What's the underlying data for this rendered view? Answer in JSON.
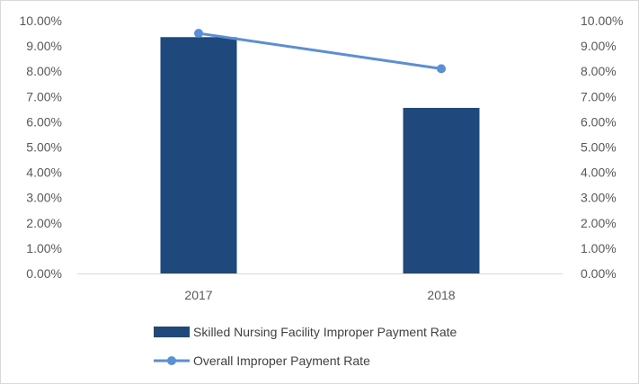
{
  "chart_data": {
    "type": "bar",
    "categories": [
      "2017",
      "2018"
    ],
    "series": [
      {
        "name": "Skilled Nursing Facility Improper Payment Rate",
        "kind": "bar",
        "axis": "left",
        "color": "#1f497d",
        "values": [
          9.35,
          6.55
        ]
      },
      {
        "name": "Overall Improper Payment Rate",
        "kind": "line",
        "axis": "right",
        "color": "#5b8fd4",
        "values": [
          9.5,
          8.1
        ]
      }
    ],
    "y_left": {
      "ylim": [
        0,
        10
      ],
      "ticks": [
        "0.00%",
        "1.00%",
        "2.00%",
        "3.00%",
        "4.00%",
        "5.00%",
        "6.00%",
        "7.00%",
        "8.00%",
        "9.00%",
        "10.00%"
      ]
    },
    "y_right": {
      "ylim": [
        0,
        10
      ],
      "ticks": [
        "0.00%",
        "1.00%",
        "2.00%",
        "3.00%",
        "4.00%",
        "5.00%",
        "6.00%",
        "7.00%",
        "8.00%",
        "9.00%",
        "10.00%"
      ]
    },
    "grid": false,
    "legend_position": "bottom",
    "title": "",
    "xlabel": "",
    "ylabel": ""
  }
}
